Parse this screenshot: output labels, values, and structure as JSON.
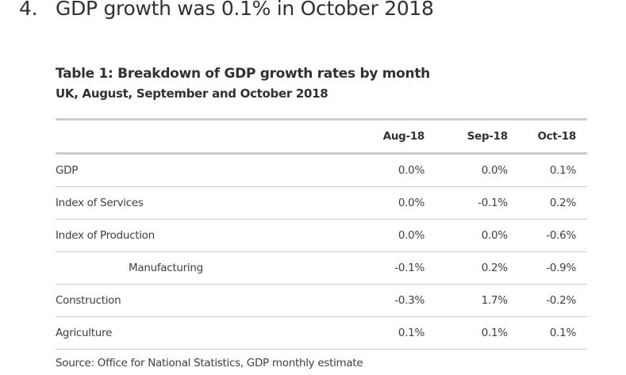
{
  "section": {
    "number": "4.",
    "title": "GDP growth was 0.1% in October 2018"
  },
  "table": {
    "title": "Table 1: Breakdown of GDP growth rates by month",
    "subtitle": "UK, August, September and October 2018",
    "columns": [
      "",
      "Aug-18",
      "Sep-18",
      "Oct-18"
    ],
    "rows": [
      {
        "label": "GDP",
        "indent": false,
        "values": [
          "0.0%",
          "0.0%",
          "0.1%"
        ]
      },
      {
        "label": "Index of Services",
        "indent": false,
        "values": [
          "0.0%",
          "-0.1%",
          "0.2%"
        ]
      },
      {
        "label": "Index of Production",
        "indent": false,
        "values": [
          "0.0%",
          "0.0%",
          "-0.6%"
        ]
      },
      {
        "label": "Manufacturing",
        "indent": true,
        "values": [
          "-0.1%",
          "0.2%",
          "-0.9%"
        ]
      },
      {
        "label": "Construction",
        "indent": false,
        "values": [
          "-0.3%",
          "1.7%",
          "-0.2%"
        ]
      },
      {
        "label": "Agriculture",
        "indent": false,
        "values": [
          "0.1%",
          "0.1%",
          "0.1%"
        ]
      }
    ],
    "source": "Source: Office for National Statistics, GDP monthly estimate"
  },
  "colors": {
    "text": "#323132",
    "border": "#cccccc"
  }
}
